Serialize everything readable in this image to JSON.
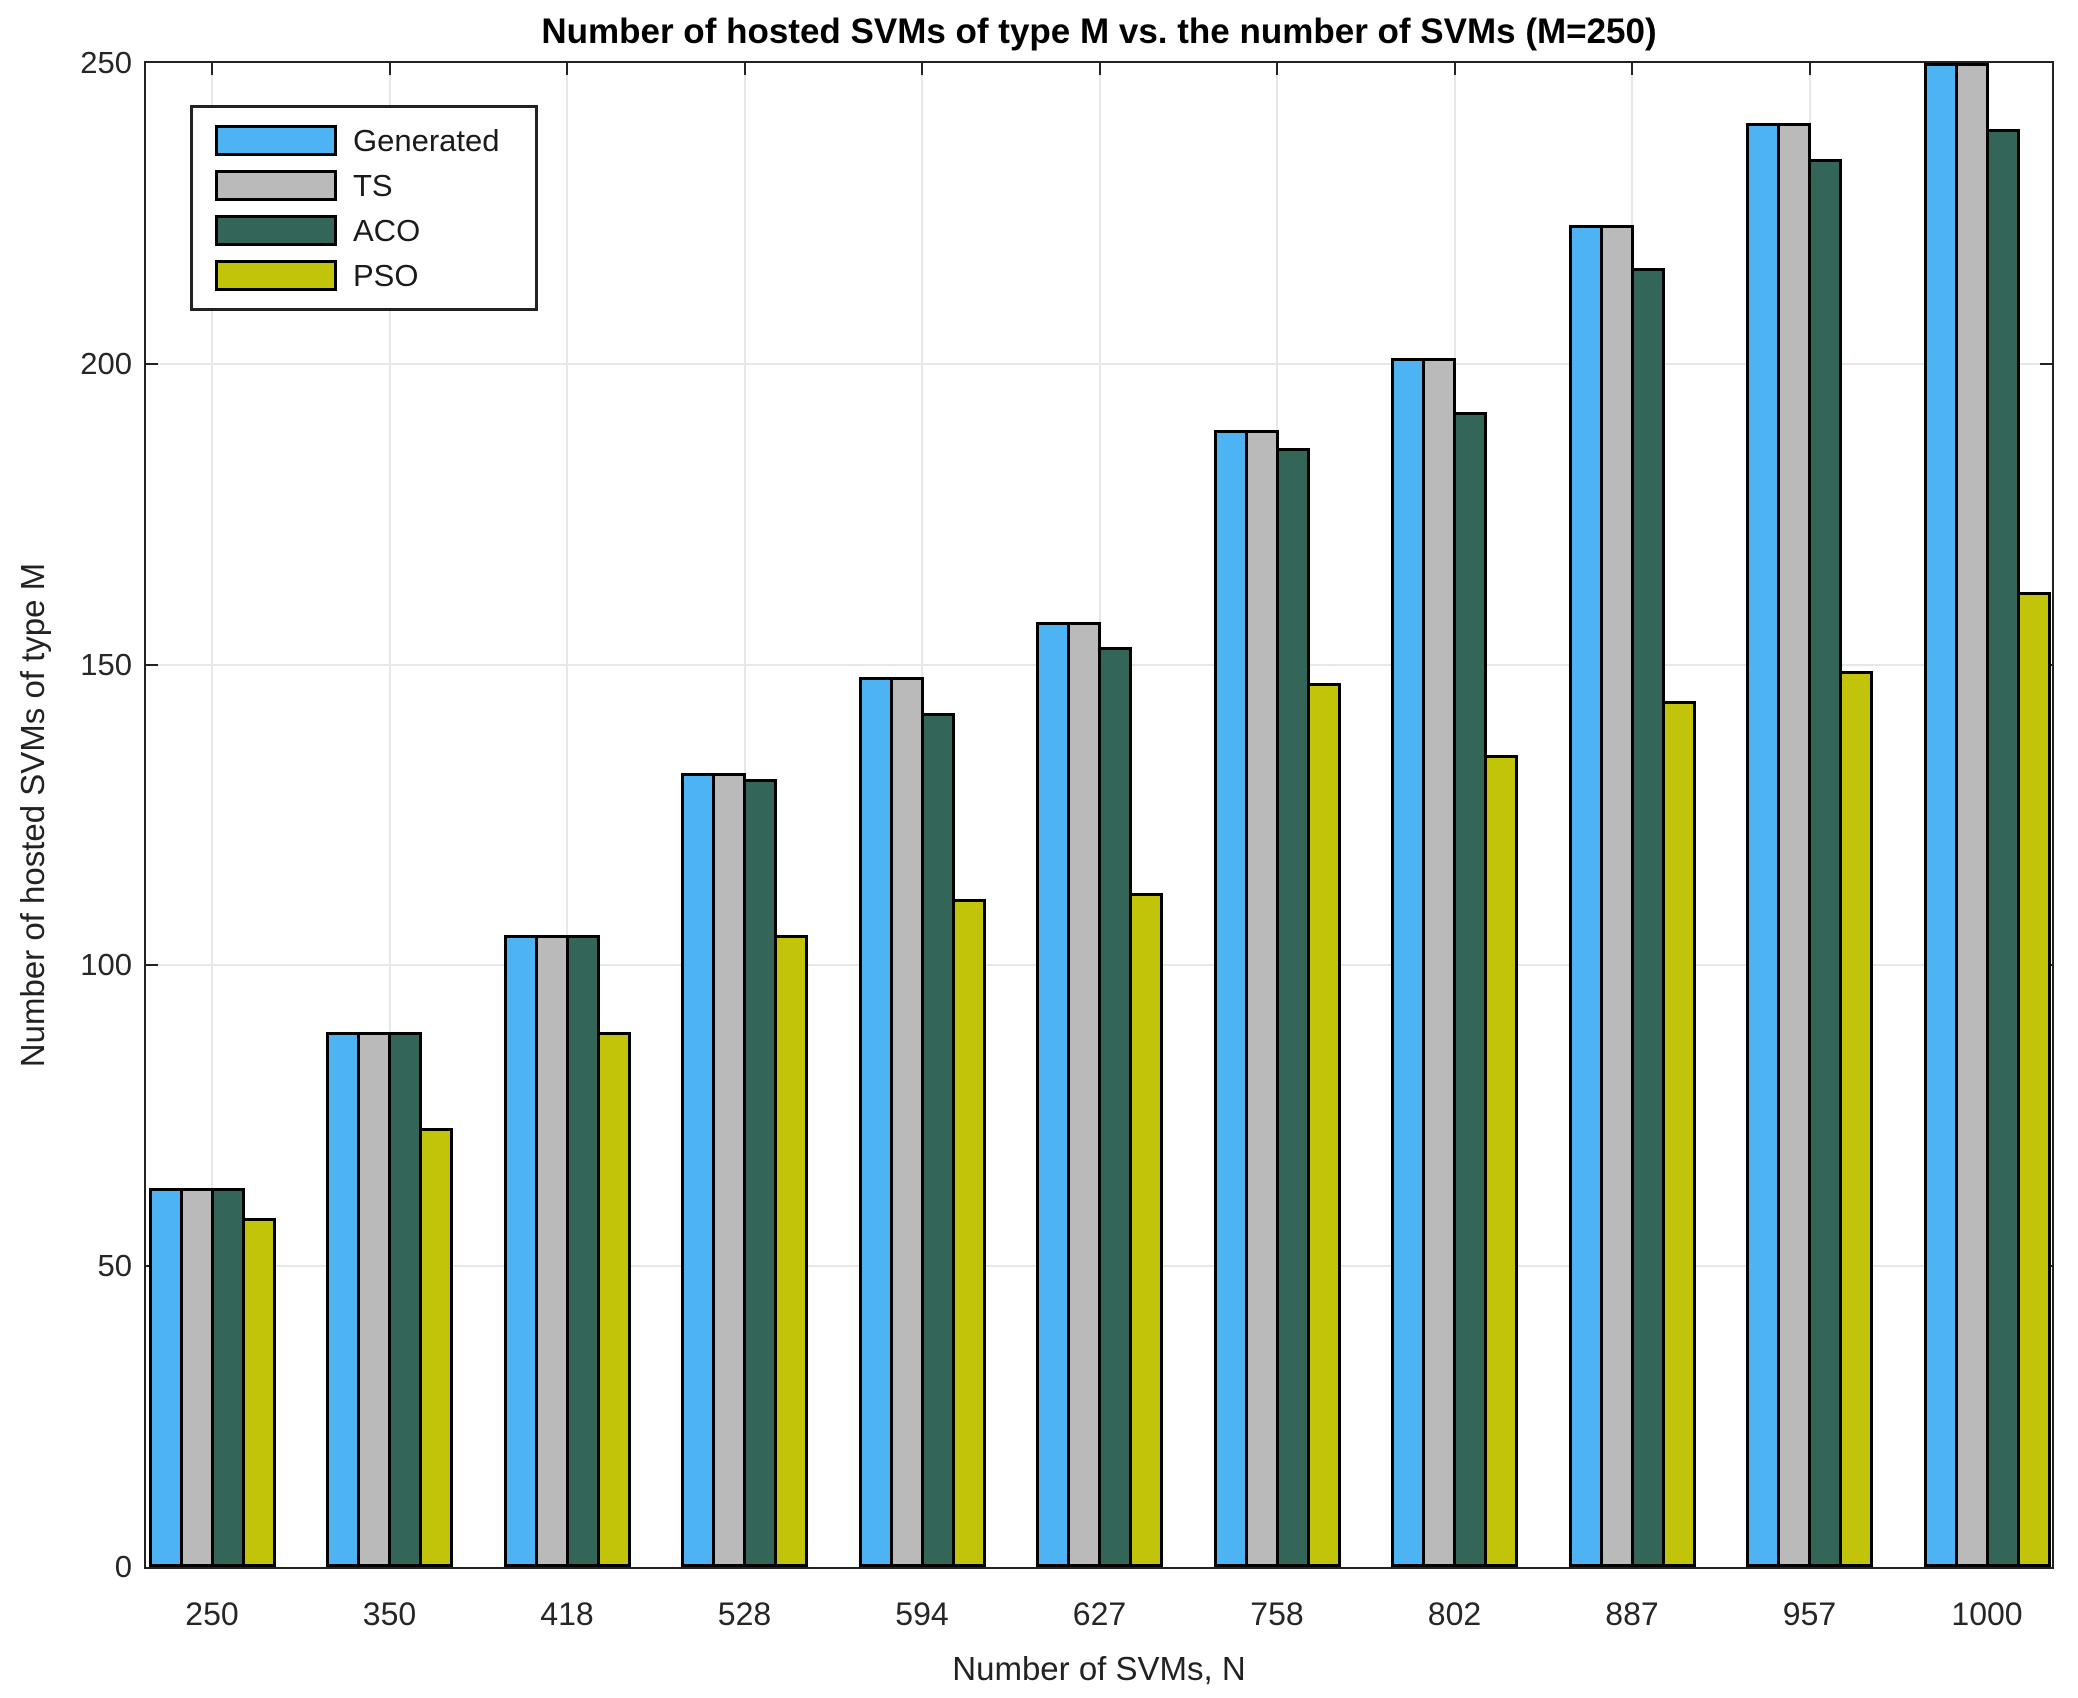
{
  "chart_data": {
    "type": "bar",
    "title": "Number of hosted SVMs of type M vs. the number of SVMs (M=250)",
    "xlabel": "Number of SVMs, N",
    "ylabel": "Number of hosted SVMs of type M",
    "categories": [
      "250",
      "350",
      "418",
      "528",
      "594",
      "627",
      "758",
      "802",
      "887",
      "957",
      "1000"
    ],
    "series": [
      {
        "name": "Generated",
        "color": "#4DB3F2",
        "values": [
          63,
          89,
          105,
          132,
          148,
          157,
          189,
          201,
          223,
          240,
          250
        ]
      },
      {
        "name": "TS",
        "color": "#BABABA",
        "values": [
          63,
          89,
          105,
          132,
          148,
          157,
          189,
          201,
          223,
          240,
          250
        ]
      },
      {
        "name": "ACO",
        "color": "#336659",
        "values": [
          63,
          89,
          105,
          131,
          142,
          153,
          186,
          192,
          216,
          234,
          239
        ]
      },
      {
        "name": "PSO",
        "color": "#C2C40A",
        "values": [
          58,
          73,
          89,
          105,
          111,
          112,
          147,
          135,
          144,
          149,
          162
        ]
      }
    ],
    "ylim": [
      0,
      250
    ],
    "yticks": [
      0,
      50,
      100,
      150,
      200,
      250
    ],
    "grid": true,
    "legend_position": "top-left",
    "bar_edge_color": "#000000",
    "axis_color": "#222222"
  }
}
